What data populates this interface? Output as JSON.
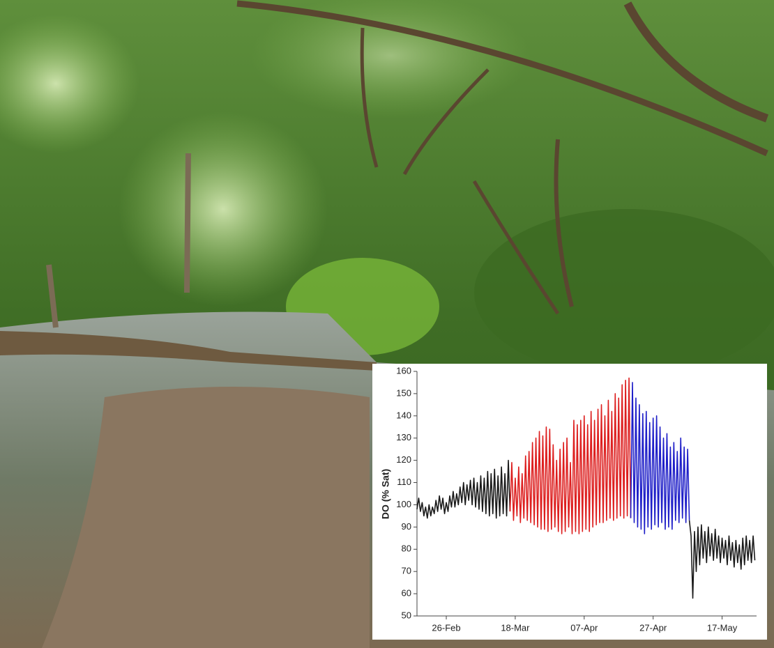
{
  "chart_data": {
    "type": "line",
    "ylabel": "DO (% Sat)",
    "xlim": [
      48.5,
      147
    ],
    "ylim": [
      50,
      160
    ],
    "yticks": [
      50,
      60,
      70,
      80,
      90,
      100,
      110,
      120,
      130,
      140,
      150,
      160
    ],
    "xticks": [
      {
        "value": 57,
        "label": "26-Feb"
      },
      {
        "value": 77,
        "label": "18-Mar"
      },
      {
        "value": 97,
        "label": "07-Apr"
      },
      {
        "value": 117,
        "label": "27-Apr"
      },
      {
        "value": 137,
        "label": "17-May"
      }
    ],
    "grid": false,
    "series": [
      {
        "color": "#1a1a1a",
        "x": [
          48.5,
          49,
          49.5,
          50,
          50.5,
          51,
          51.5,
          52,
          52.5,
          53,
          53.5,
          54,
          54.5,
          55,
          55.5,
          56,
          56.5,
          57,
          57.5,
          58,
          58.5,
          59,
          59.5,
          60,
          60.5,
          61,
          61.5,
          62,
          62.5,
          63,
          63.5,
          64,
          64.5,
          65,
          65.5,
          66,
          66.5,
          67,
          67.5,
          68,
          68.5,
          69,
          69.5,
          70,
          70.5,
          71,
          71.5,
          72,
          72.5,
          73,
          73.5,
          74,
          74.5,
          75,
          75.5
        ],
        "values": [
          98,
          103,
          97,
          101,
          95,
          99,
          94,
          100,
          95,
          99,
          96,
          102,
          97,
          104,
          98,
          103,
          96,
          101,
          97,
          104,
          99,
          106,
          99,
          105,
          100,
          108,
          101,
          110,
          100,
          109,
          102,
          111,
          100,
          112,
          99,
          110,
          98,
          113,
          97,
          112,
          96,
          115,
          95,
          114,
          96,
          116,
          94,
          113,
          95,
          117,
          96,
          114,
          95,
          120,
          97
        ]
      },
      {
        "color": "#dd1f1f",
        "x": [
          75.5,
          76,
          76.5,
          77,
          77.5,
          78,
          78.5,
          79,
          79.5,
          80,
          80.5,
          81,
          81.5,
          82,
          82.5,
          83,
          83.5,
          84,
          84.5,
          85,
          85.5,
          86,
          86.5,
          87,
          87.5,
          88,
          88.5,
          89,
          89.5,
          90,
          90.5,
          91,
          91.5,
          92,
          92.5,
          93,
          93.5,
          94,
          94.5,
          95,
          95.5,
          96,
          96.5,
          97,
          97.5,
          98,
          98.5,
          99,
          99.5,
          100,
          100.5,
          101,
          101.5,
          102,
          102.5,
          103,
          103.5,
          104,
          104.5,
          105,
          105.5,
          106,
          106.5,
          107,
          107.5,
          108,
          108.5,
          109,
          109.5,
          110,
          110.5
        ],
        "values": [
          97,
          119,
          93,
          112,
          95,
          117,
          92,
          114,
          94,
          122,
          93,
          124,
          92,
          128,
          91,
          130,
          90,
          133,
          89,
          131,
          89,
          135,
          88,
          134,
          89,
          127,
          90,
          120,
          88,
          125,
          87,
          128,
          88,
          130,
          90,
          119,
          87,
          138,
          88,
          136,
          87,
          138,
          88,
          140,
          89,
          136,
          88,
          142,
          90,
          138,
          91,
          143,
          92,
          145,
          92,
          140,
          93,
          147,
          94,
          142,
          93,
          150,
          94,
          148,
          95,
          154,
          94,
          156,
          95,
          157,
          94
        ]
      },
      {
        "color": "#1f1fc8",
        "x": [
          110.5,
          111,
          111.5,
          112,
          112.5,
          113,
          113.5,
          114,
          114.5,
          115,
          115.5,
          116,
          116.5,
          117,
          117.5,
          118,
          118.5,
          119,
          119.5,
          120,
          120.5,
          121,
          121.5,
          122,
          122.5,
          123,
          123.5,
          124,
          124.5,
          125,
          125.5,
          126,
          126.5,
          127,
          127.5
        ],
        "values": [
          94,
          155,
          92,
          148,
          90,
          145,
          89,
          141,
          87,
          142,
          90,
          137,
          89,
          139,
          91,
          140,
          90,
          135,
          92,
          130,
          89,
          132,
          90,
          126,
          89,
          128,
          93,
          124,
          92,
          130,
          94,
          126,
          92,
          125,
          93
        ]
      },
      {
        "color": "#1a1a1a",
        "x": [
          127.5,
          128,
          128.5,
          129,
          129.5,
          130,
          130.5,
          131,
          131.5,
          132,
          132.5,
          133,
          133.5,
          134,
          134.5,
          135,
          135.5,
          136,
          136.5,
          137,
          137.5,
          138,
          138.5,
          139,
          139.5,
          140,
          140.5,
          141,
          141.5,
          142,
          142.5,
          143,
          143.5,
          144,
          144.5,
          145,
          145.5,
          146,
          146.5
        ],
        "values": [
          93,
          86,
          58,
          88,
          70,
          90,
          73,
          91,
          76,
          88,
          74,
          90,
          77,
          87,
          75,
          89,
          76,
          86,
          74,
          85,
          76,
          84,
          73,
          86,
          75,
          83,
          72,
          84,
          74,
          82,
          71,
          85,
          73,
          86,
          75,
          84,
          74,
          86,
          75
        ]
      }
    ]
  }
}
